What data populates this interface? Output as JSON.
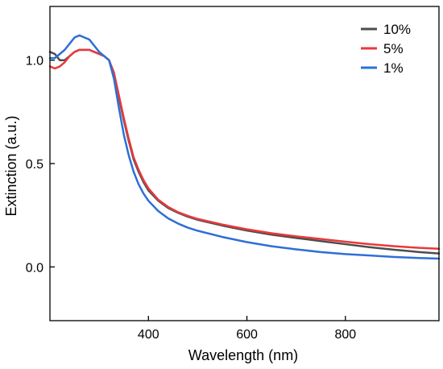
{
  "chart_data": {
    "type": "line",
    "xlabel": "Wavelength (nm)",
    "ylabel": "Extinction (a.u.)",
    "xlim": [
      200,
      990
    ],
    "ylim": [
      -0.26,
      1.26
    ],
    "x_ticks": [
      {
        "value": 400,
        "label": "400"
      },
      {
        "value": 600,
        "label": "600"
      },
      {
        "value": 800,
        "label": "800"
      }
    ],
    "y_ticks": [
      {
        "value": 0.0,
        "label": "0.0"
      },
      {
        "value": 0.5,
        "label": "0.5"
      },
      {
        "value": 1.0,
        "label": "1.0"
      }
    ],
    "legend": {
      "position": "top-right",
      "frame": false
    },
    "grid": false,
    "series": [
      {
        "name": "10%",
        "color": "#4d4d4d",
        "x": [
          200,
          210,
          220,
          230,
          240,
          250,
          260,
          270,
          280,
          290,
          300,
          310,
          320,
          330,
          340,
          350,
          360,
          370,
          380,
          390,
          400,
          420,
          440,
          460,
          480,
          500,
          550,
          600,
          650,
          700,
          750,
          800,
          850,
          900,
          950,
          990
        ],
        "y": [
          1.04,
          1.03,
          1.0,
          1.0,
          1.02,
          1.04,
          1.05,
          1.05,
          1.05,
          1.04,
          1.03,
          1.02,
          1.0,
          0.93,
          0.82,
          0.71,
          0.61,
          0.52,
          0.46,
          0.41,
          0.37,
          0.32,
          0.285,
          0.262,
          0.243,
          0.228,
          0.2,
          0.176,
          0.156,
          0.14,
          0.125,
          0.11,
          0.095,
          0.083,
          0.072,
          0.065
        ]
      },
      {
        "name": "5%",
        "color": "#e8393c",
        "x": [
          200,
          210,
          220,
          230,
          240,
          250,
          260,
          270,
          280,
          290,
          300,
          310,
          320,
          330,
          340,
          350,
          360,
          370,
          380,
          390,
          400,
          420,
          440,
          460,
          480,
          500,
          550,
          600,
          650,
          700,
          750,
          800,
          850,
          900,
          950,
          990
        ],
        "y": [
          0.97,
          0.96,
          0.97,
          0.99,
          1.02,
          1.04,
          1.05,
          1.05,
          1.05,
          1.04,
          1.03,
          1.02,
          1.0,
          0.94,
          0.83,
          0.72,
          0.62,
          0.53,
          0.47,
          0.42,
          0.38,
          0.325,
          0.29,
          0.265,
          0.247,
          0.232,
          0.205,
          0.182,
          0.163,
          0.148,
          0.135,
          0.122,
          0.11,
          0.1,
          0.092,
          0.088
        ]
      },
      {
        "name": "1%",
        "color": "#2e6fd6",
        "x": [
          200,
          210,
          220,
          230,
          240,
          250,
          260,
          270,
          280,
          290,
          300,
          310,
          320,
          330,
          340,
          350,
          360,
          370,
          380,
          390,
          400,
          420,
          440,
          460,
          480,
          500,
          550,
          600,
          650,
          700,
          750,
          800,
          850,
          900,
          950,
          990
        ],
        "y": [
          1.01,
          1.01,
          1.03,
          1.05,
          1.08,
          1.11,
          1.12,
          1.11,
          1.1,
          1.07,
          1.04,
          1.02,
          1.0,
          0.91,
          0.77,
          0.64,
          0.54,
          0.46,
          0.4,
          0.355,
          0.32,
          0.27,
          0.235,
          0.21,
          0.19,
          0.175,
          0.145,
          0.12,
          0.1,
          0.085,
          0.072,
          0.062,
          0.055,
          0.048,
          0.043,
          0.04
        ]
      }
    ]
  }
}
